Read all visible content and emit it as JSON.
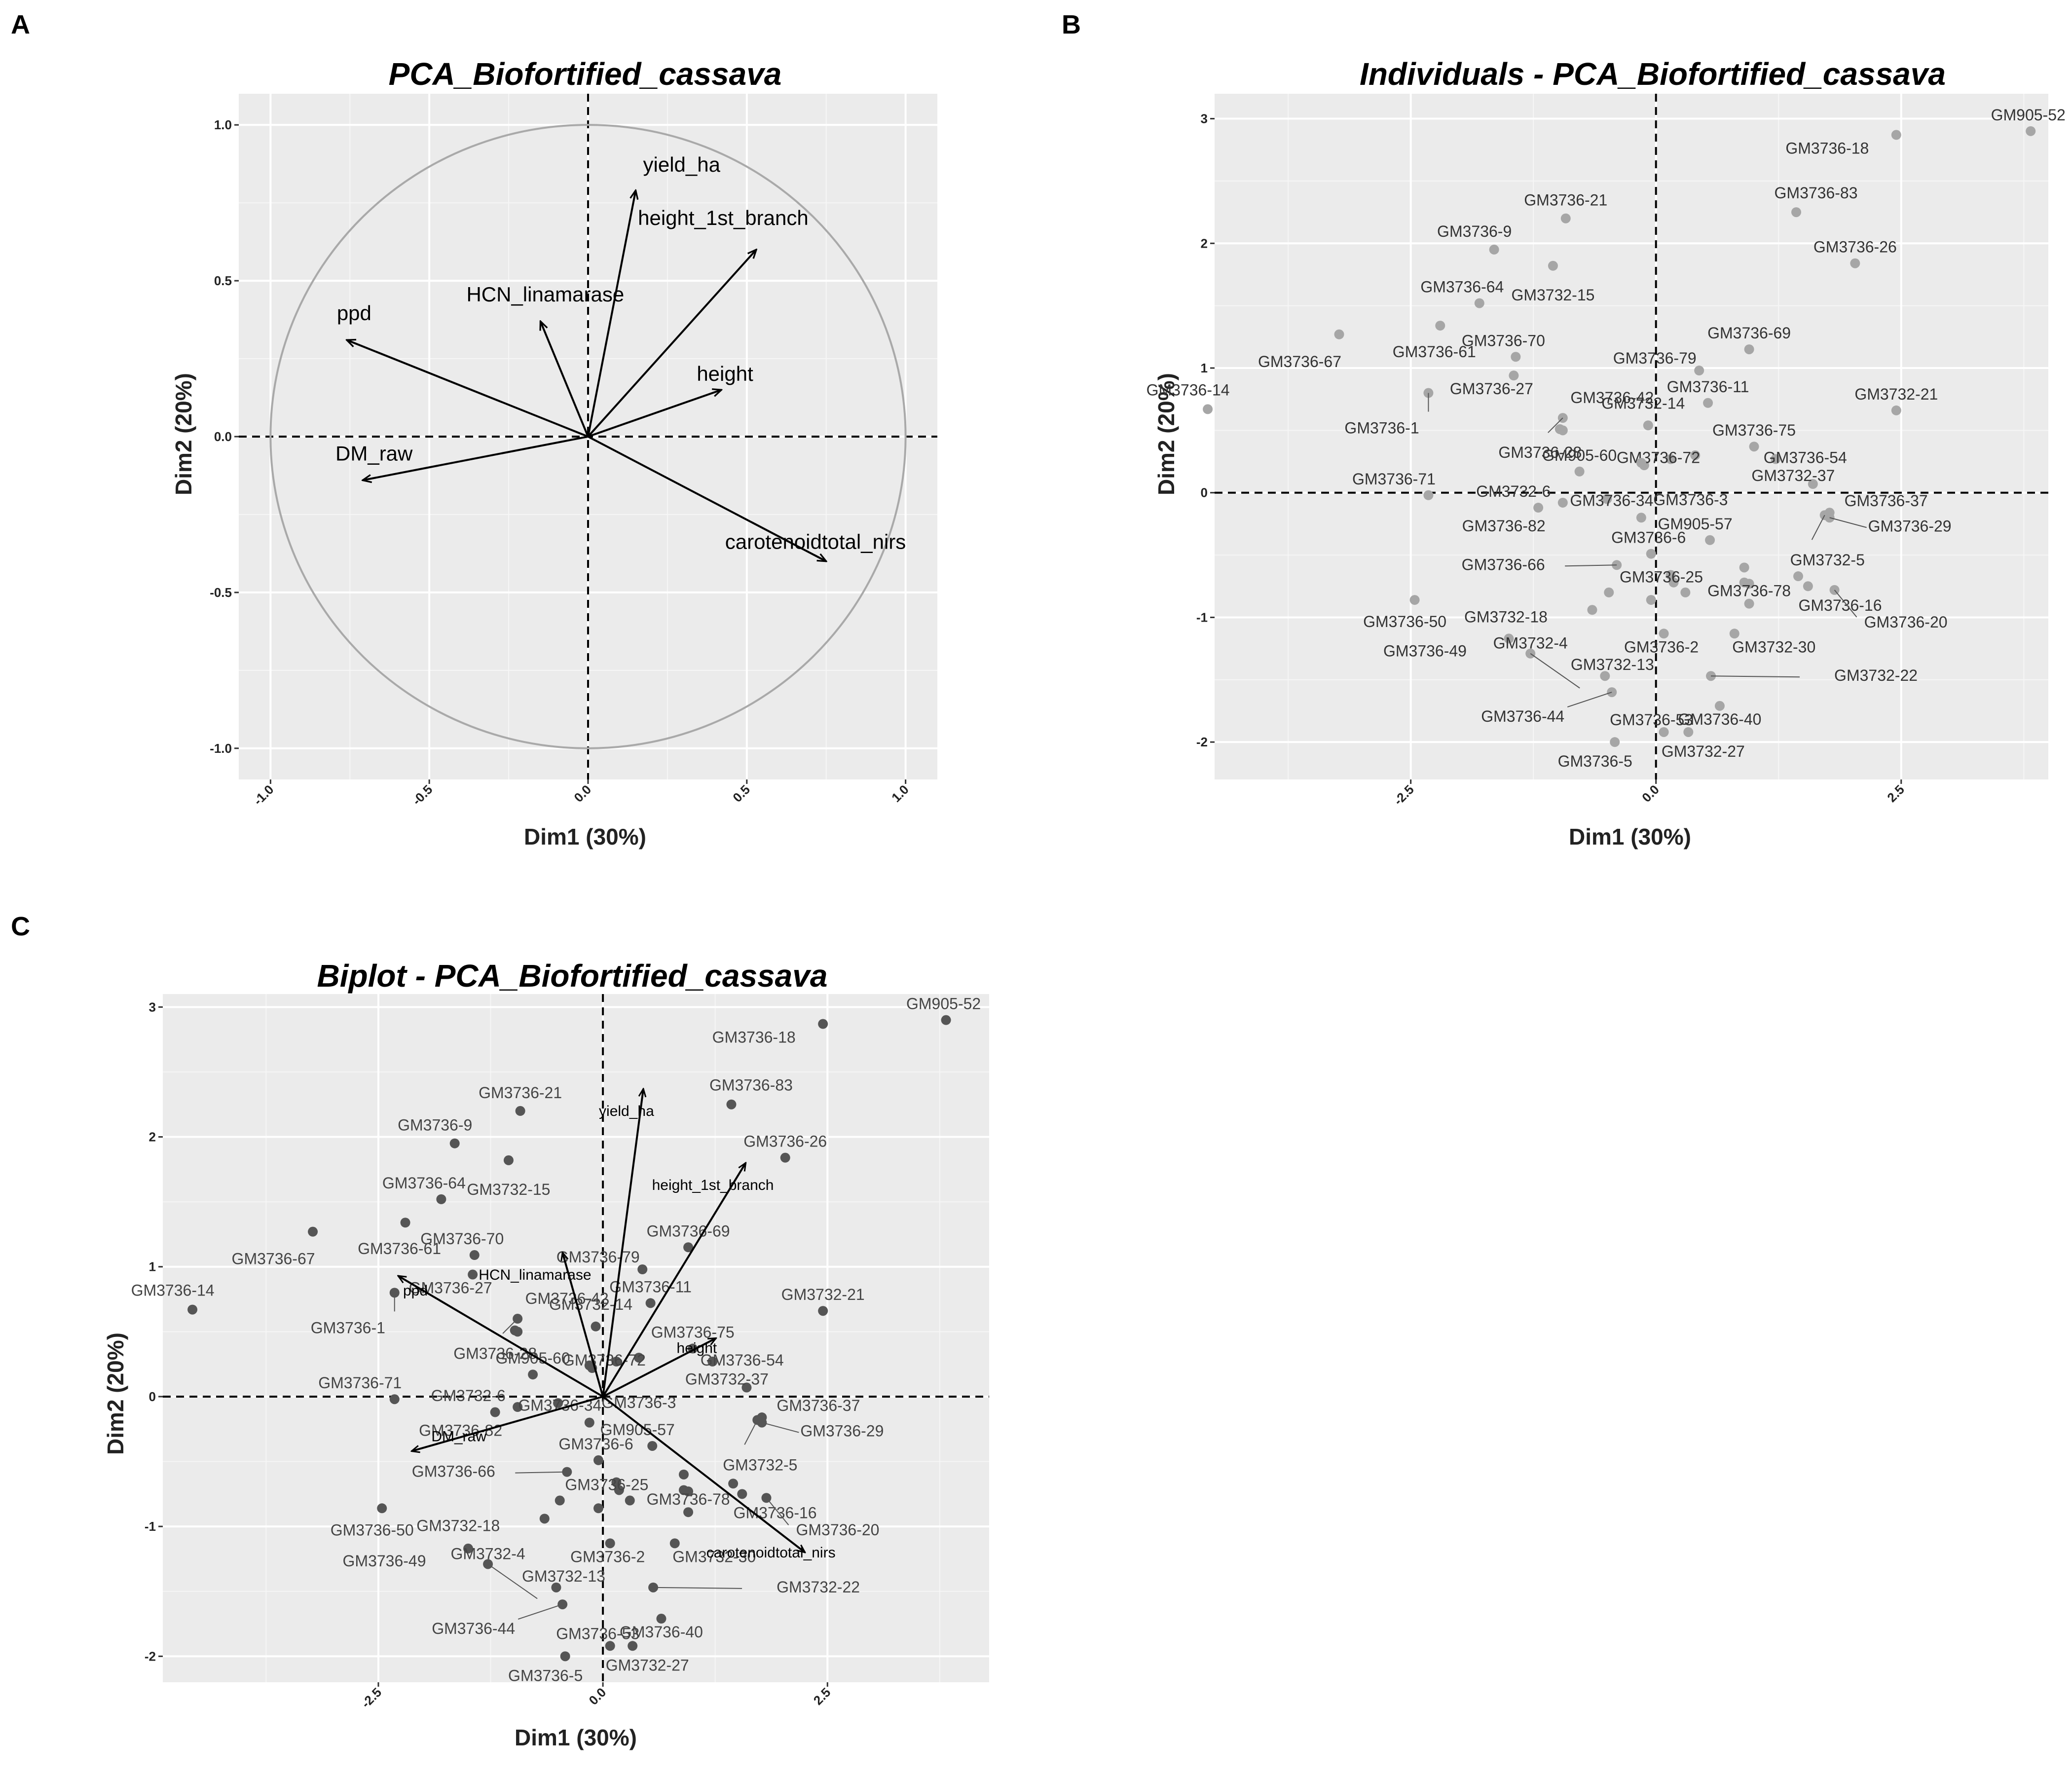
{
  "panels": {
    "A": "A",
    "B": "B",
    "C": "C"
  },
  "chart_data": [
    {
      "id": "A",
      "type": "scatter",
      "subtype": "pca-variable-correlation-circle",
      "title": "PCA_Biofortified_cassava",
      "xlabel": "Dim1 (30%)",
      "ylabel": "Dim2 (20%)",
      "xlim": [
        -1.1,
        1.1
      ],
      "ylim": [
        -1.1,
        1.1
      ],
      "xticks": [
        -1.0,
        -0.5,
        0.0,
        0.5,
        1.0
      ],
      "xtick_labels": [
        "-1.0",
        "-0.5",
        "0.0",
        "0.5",
        "1.0"
      ],
      "yticks": [
        -1.0,
        -0.5,
        0.0,
        0.5,
        1.0
      ],
      "ytick_labels": [
        "-1.0",
        "-0.5",
        "0.0",
        "0.5",
        "1.0"
      ],
      "grid": true,
      "unit_circle": true,
      "variables": [
        {
          "name": "yield_ha",
          "x": 0.15,
          "y": 0.79
        },
        {
          "name": "height_1st_branch",
          "x": 0.53,
          "y": 0.6
        },
        {
          "name": "HCN_linamarase",
          "x": -0.15,
          "y": 0.37
        },
        {
          "name": "ppd",
          "x": -0.76,
          "y": 0.31
        },
        {
          "name": "height",
          "x": 0.42,
          "y": 0.15
        },
        {
          "name": "DM_raw",
          "x": -0.71,
          "y": -0.14
        },
        {
          "name": "carotenoidtotal_nirs",
          "x": 0.75,
          "y": -0.4
        }
      ]
    },
    {
      "id": "B",
      "type": "scatter",
      "subtype": "pca-individuals",
      "title": "Individuals - PCA_Biofortified_cassava",
      "xlabel": "Dim1 (30%)",
      "ylabel": "Dim2 (20%)",
      "xlim": [
        -4.5,
        4.0
      ],
      "ylim": [
        -2.3,
        3.2
      ],
      "xticks": [
        -2.5,
        0.0,
        2.5
      ],
      "xtick_labels": [
        "-2.5",
        "0.0",
        "2.5"
      ],
      "yticks": [
        -2,
        -1,
        0,
        1,
        2,
        3
      ],
      "ytick_labels": [
        "-2",
        "-1",
        "0",
        "1",
        "2",
        "3"
      ],
      "grid": true,
      "points": [
        {
          "label": "GM905-52",
          "x": 3.82,
          "y": 2.9
        },
        {
          "label": "GM3736-18",
          "x": 2.45,
          "y": 2.87
        },
        {
          "label": "GM3736-83",
          "x": 1.43,
          "y": 2.25
        },
        {
          "label": "GM3736-26",
          "x": 2.03,
          "y": 1.84
        },
        {
          "label": "GM3736-21",
          "x": -0.92,
          "y": 2.2
        },
        {
          "label": "GM3736-9",
          "x": -1.65,
          "y": 1.95
        },
        {
          "label": "GM3732-15",
          "x": -1.05,
          "y": 1.82
        },
        {
          "label": "GM3736-64",
          "x": -1.8,
          "y": 1.52
        },
        {
          "label": "GM3736-61",
          "x": -2.2,
          "y": 1.34
        },
        {
          "label": "GM3736-67",
          "x": -3.23,
          "y": 1.27
        },
        {
          "label": "GM3736-70",
          "x": -1.43,
          "y": 1.09
        },
        {
          "label": "GM3736-69",
          "x": 0.95,
          "y": 1.15
        },
        {
          "label": "GM3736-79",
          "x": 0.44,
          "y": 0.98
        },
        {
          "label": "GM3736-14",
          "x": -4.57,
          "y": 0.67
        },
        {
          "label": "GM3736-27",
          "x": -1.45,
          "y": 0.94
        },
        {
          "label": "GM3736-42",
          "x": -0.95,
          "y": 0.6
        },
        {
          "label": "GM3736-11",
          "x": 0.53,
          "y": 0.72
        },
        {
          "label": "GM3732-21",
          "x": 2.45,
          "y": 0.66
        },
        {
          "label": "GM3736-1",
          "x": -2.32,
          "y": 0.8
        },
        {
          "label": "GM3736-28",
          "x": -0.98,
          "y": 0.51
        },
        {
          "label": "GM3732-14",
          "x": -0.08,
          "y": 0.54
        },
        {
          "label": "GM3736-75",
          "x": 1.0,
          "y": 0.37
        },
        {
          "label": "GM3736-54",
          "x": 1.22,
          "y": 0.27
        },
        {
          "label": "GM3736-72",
          "x": 0.15,
          "y": 0.27
        },
        {
          "label": "GM905-60",
          "x": -0.78,
          "y": 0.17
        },
        {
          "label": "GM3736-3",
          "x": -0.15,
          "y": 0.24
        },
        {
          "label": "GM3732-37",
          "x": 1.6,
          "y": 0.07
        },
        {
          "label": "GM3736-71",
          "x": -2.32,
          "y": -0.02
        },
        {
          "label": "GM3732-6",
          "x": -0.95,
          "y": -0.08
        },
        {
          "label": "GM3736-82",
          "x": -1.2,
          "y": -0.12
        },
        {
          "label": "GM3736-34",
          "x": -0.15,
          "y": -0.2
        },
        {
          "label": "GM3736-37",
          "x": 1.77,
          "y": -0.16
        },
        {
          "label": "GM3736-29",
          "x": 1.77,
          "y": -0.2
        },
        {
          "label": "GM905-57",
          "x": 0.55,
          "y": -0.38
        },
        {
          "label": "GM3736-6",
          "x": -0.05,
          "y": -0.49
        },
        {
          "label": "GM3732-5",
          "x": 1.72,
          "y": -0.18
        },
        {
          "label": "GM3736-66",
          "x": -0.4,
          "y": -0.58
        },
        {
          "label": "GM3736-25",
          "x": 0.18,
          "y": -0.72
        },
        {
          "label": "GM3736-50",
          "x": -2.46,
          "y": -0.86
        },
        {
          "label": "GM3736-16",
          "x": 1.45,
          "y": -0.67
        },
        {
          "label": "GM3736-20",
          "x": 1.82,
          "y": -0.78
        },
        {
          "label": "GM3736-78",
          "x": 0.95,
          "y": -0.89
        },
        {
          "label": "GM3732-18",
          "x": -0.65,
          "y": -0.94
        },
        {
          "label": "GM3736-49",
          "x": -1.5,
          "y": -1.17
        },
        {
          "label": "GM3732-4",
          "x": -1.28,
          "y": -1.29
        },
        {
          "label": "GM3736-2",
          "x": 0.08,
          "y": -1.13
        },
        {
          "label": "GM3732-30",
          "x": 0.8,
          "y": -1.13
        },
        {
          "label": "GM3732-13",
          "x": -0.52,
          "y": -1.47
        },
        {
          "label": "GM3732-22",
          "x": 0.56,
          "y": -1.47
        },
        {
          "label": "GM3736-44",
          "x": -0.45,
          "y": -1.6
        },
        {
          "label": "GM3736-40",
          "x": 0.65,
          "y": -1.71
        },
        {
          "label": "GM3736-53",
          "x": 0.08,
          "y": -1.92
        },
        {
          "label": "GM3736-5",
          "x": -0.42,
          "y": -2.0
        },
        {
          "label": "GM3732-27",
          "x": 0.33,
          "y": -1.92
        }
      ],
      "extra_points": [
        {
          "x": -0.95,
          "y": 0.5
        },
        {
          "x": 0.9,
          "y": -0.6
        },
        {
          "x": 0.9,
          "y": -0.72
        },
        {
          "x": 0.95,
          "y": -0.73
        },
        {
          "x": 1.55,
          "y": -0.75
        },
        {
          "x": 0.15,
          "y": -0.66
        },
        {
          "x": 0.3,
          "y": -0.8
        },
        {
          "x": -0.48,
          "y": -0.8
        },
        {
          "x": -0.05,
          "y": -0.86
        },
        {
          "x": 0.4,
          "y": 0.3
        },
        {
          "x": -0.5,
          "y": -0.05
        },
        {
          "x": -0.12,
          "y": 0.22
        }
      ]
    },
    {
      "id": "C",
      "type": "scatter",
      "subtype": "pca-biplot",
      "title": "Biplot - PCA_Biofortified_cassava",
      "xlabel": "Dim1 (30%)",
      "ylabel": "Dim2 (20%)",
      "xlim": [
        -4.9,
        4.3
      ],
      "ylim": [
        -2.2,
        3.1
      ],
      "xticks": [
        -2.5,
        0.0,
        2.5
      ],
      "xtick_labels": [
        "-2.5",
        "0.0",
        "2.5"
      ],
      "yticks": [
        -2,
        -1,
        0,
        1,
        2,
        3
      ],
      "ytick_labels": [
        "-2",
        "-1",
        "0",
        "1",
        "2",
        "3"
      ],
      "grid": true,
      "variable_scale": 3.0,
      "variables": [
        {
          "name": "yield_ha",
          "x": 0.15,
          "y": 0.79
        },
        {
          "name": "height_1st_branch",
          "x": 0.53,
          "y": 0.6
        },
        {
          "name": "HCN_linamarase",
          "x": -0.15,
          "y": 0.37
        },
        {
          "name": "ppd",
          "x": -0.76,
          "y": 0.31
        },
        {
          "name": "height",
          "x": 0.42,
          "y": 0.15
        },
        {
          "name": "DM_raw",
          "x": -0.71,
          "y": -0.14
        },
        {
          "name": "carotenoidtotal_nirs",
          "x": 0.75,
          "y": -0.4
        }
      ]
    }
  ]
}
